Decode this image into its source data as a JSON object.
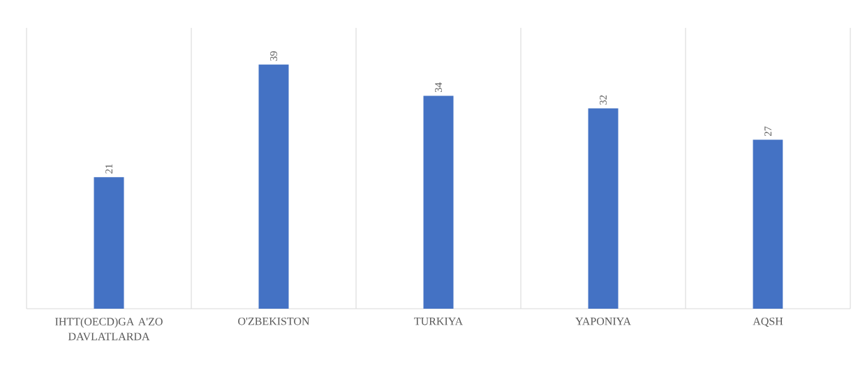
{
  "chart_data": {
    "type": "bar",
    "categories": [
      "IHTT(OECD)GA A'ZO DAVLATLARDA",
      "O'ZBEKISTON",
      "TURKIYA",
      "YAPONIYA",
      "AQSH"
    ],
    "values": [
      21,
      39,
      34,
      32,
      27
    ],
    "color": "#4472c4",
    "data_labels": true,
    "grid": "x"
  }
}
